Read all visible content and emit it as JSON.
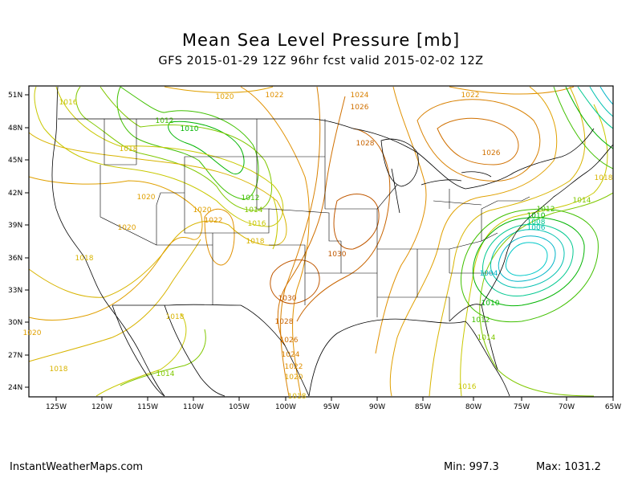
{
  "title": "Mean Sea Level Pressure [mb]",
  "subtitle": "GFS 2015-01-29 12Z 96hr fcst valid 2015-02-02 12Z",
  "footer": {
    "site": "InstantWeatherMaps.com",
    "min_label": "Min:",
    "min_value": "997.3",
    "max_label": "Max:",
    "max_value": "1031.2"
  },
  "axes": {
    "lat_labels": [
      "51N",
      "48N",
      "45N",
      "42N",
      "39N",
      "36N",
      "33N",
      "30N",
      "27N",
      "24N"
    ],
    "lon_labels": [
      "125W",
      "120W",
      "115W",
      "110W",
      "105W",
      "100W",
      "95W",
      "90W",
      "85W",
      "80W",
      "75W",
      "70W",
      "65W"
    ]
  },
  "colors": {
    "c996": "#00c8c8",
    "c1004": "#00b4c8",
    "c1006": "#00c0b0",
    "c1008": "#00c890",
    "c1010": "#00b400",
    "c1012": "#40c000",
    "c1014": "#80c800",
    "c1016": "#c8c800",
    "c1018": "#d8b400",
    "c1020": "#e0a000",
    "c1022": "#e09000",
    "c1024": "#d88000",
    "c1026": "#d07000",
    "c1028": "#c86400",
    "c1030": "#c05800"
  },
  "contour_labels": [
    {
      "text": "1016",
      "c": "c1016"
    },
    {
      "text": "1020",
      "c": "c1020"
    },
    {
      "text": "1022",
      "c": "c1022"
    },
    {
      "text": "1024",
      "c": "c1024"
    },
    {
      "text": "1026",
      "c": "c1026"
    },
    {
      "text": "1022",
      "c": "c1022"
    },
    {
      "text": "1012",
      "c": "c1012"
    },
    {
      "text": "1010",
      "c": "c1010"
    },
    {
      "text": "1018",
      "c": "c1018"
    },
    {
      "text": "1028",
      "c": "c1028"
    },
    {
      "text": "1026",
      "c": "c1026"
    },
    {
      "text": "1018",
      "c": "c1018"
    },
    {
      "text": "1020",
      "c": "c1020"
    },
    {
      "text": "1012",
      "c": "c1012"
    },
    {
      "text": "1014",
      "c": "c1014"
    },
    {
      "text": "1020",
      "c": "c1020"
    },
    {
      "text": "1022",
      "c": "c1022"
    },
    {
      "text": "1016",
      "c": "c1016"
    },
    {
      "text": "1020",
      "c": "c1020"
    },
    {
      "text": "1018",
      "c": "c1018"
    },
    {
      "text": "1014",
      "c": "c1014"
    },
    {
      "text": "1012",
      "c": "c1012"
    },
    {
      "text": "1010",
      "c": "c1010"
    },
    {
      "text": "1008",
      "c": "c1008"
    },
    {
      "text": "1006",
      "c": "c1006"
    },
    {
      "text": "1018",
      "c": "c1018"
    },
    {
      "text": "1030",
      "c": "c1030"
    },
    {
      "text": "1004",
      "c": "c1004"
    },
    {
      "text": "1030",
      "c": "c1030"
    },
    {
      "text": "1010",
      "c": "c1010"
    },
    {
      "text": "1018",
      "c": "c1018"
    },
    {
      "text": "1028",
      "c": "c1028"
    },
    {
      "text": "1012",
      "c": "c1012"
    },
    {
      "text": "1020",
      "c": "c1020"
    },
    {
      "text": "1026",
      "c": "c1026"
    },
    {
      "text": "1014",
      "c": "c1014"
    },
    {
      "text": "1024",
      "c": "c1024"
    },
    {
      "text": "1022",
      "c": "c1022"
    },
    {
      "text": "1018",
      "c": "c1018"
    },
    {
      "text": "1014",
      "c": "c1014"
    },
    {
      "text": "1020",
      "c": "c1020"
    },
    {
      "text": "1016",
      "c": "c1016"
    },
    {
      "text": "1018",
      "c": "c1018"
    }
  ]
}
